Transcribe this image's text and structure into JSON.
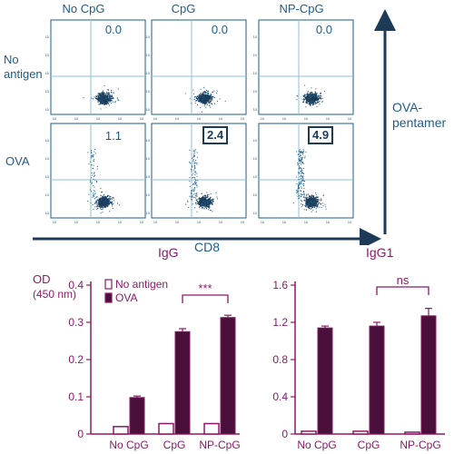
{
  "flow": {
    "columns": [
      "No CpG",
      "CpG",
      "NP-CpG"
    ],
    "rows": [
      {
        "label": "No antigen",
        "values": [
          "0.0",
          "0.0",
          "0.0"
        ],
        "boxed": [
          false,
          false,
          false
        ]
      },
      {
        "label": "OVA",
        "values": [
          "1.1",
          "2.4",
          "4.9"
        ],
        "boxed": [
          false,
          true,
          true
        ]
      }
    ],
    "x_axis_label": "CD8",
    "y_axis_label": "OVA-\npentamer",
    "tick_text": "10"
  },
  "colors": {
    "flow_blue": "#1d5c8c",
    "dark_blue": "#1d3b57",
    "magenta": "#8b1a66",
    "no_antigen_fill": "#ffffff",
    "ova_fill": "#4a0f3a",
    "gate_line": "#8fc3d8"
  },
  "chart_data": [
    {
      "type": "bar",
      "title": "IgG",
      "ylabel": "OD\n(450 nm)",
      "categories": [
        "No CpG",
        "CpG",
        "NP-CpG"
      ],
      "series": [
        {
          "name": "No antigen",
          "values": [
            0.02,
            0.028,
            0.028
          ],
          "errors": [
            0.002,
            0.002,
            0.002
          ]
        },
        {
          "name": "OVA",
          "values": [
            0.098,
            0.275,
            0.313
          ],
          "errors": [
            0.004,
            0.008,
            0.006
          ]
        }
      ],
      "ylim": [
        0,
        0.4
      ],
      "yticks": [
        "0",
        "0.1",
        "0.2",
        "0.3",
        "0.4"
      ],
      "annotation": {
        "text": "***",
        "from": 1,
        "to": 2
      },
      "legend": "top-left"
    },
    {
      "type": "bar",
      "title": "IgG1",
      "categories": [
        "No CpG",
        "CpG",
        "NP-CpG"
      ],
      "series": [
        {
          "name": "No antigen",
          "values": [
            0.03,
            0.03,
            0.02
          ],
          "errors": [
            0.005,
            0.005,
            0.005
          ]
        },
        {
          "name": "OVA",
          "values": [
            1.14,
            1.16,
            1.27
          ],
          "errors": [
            0.02,
            0.04,
            0.08
          ]
        }
      ],
      "ylim": [
        0,
        1.6
      ],
      "yticks": [
        "0",
        "0.4",
        "0.8",
        "1.2",
        "1.6"
      ],
      "annotation": {
        "text": "ns",
        "from": 1,
        "to": 2
      }
    }
  ]
}
